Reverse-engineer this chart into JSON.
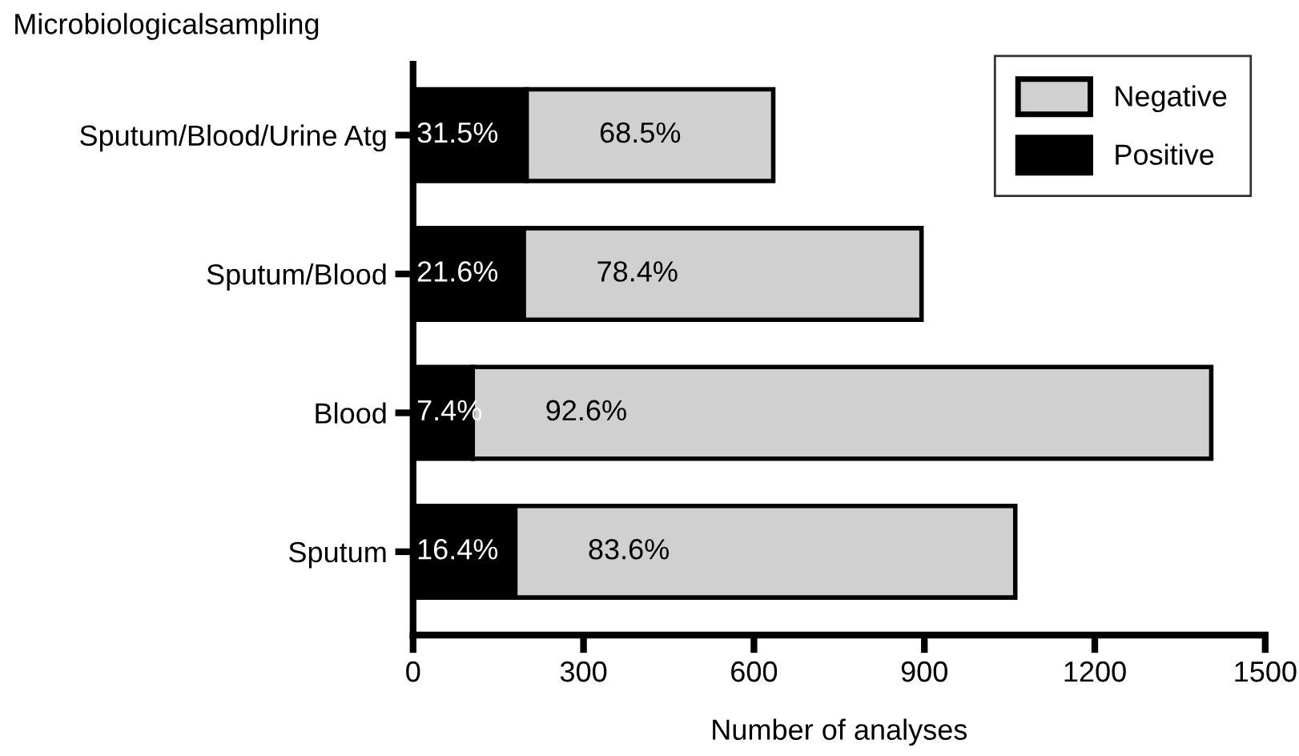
{
  "chart_data": {
    "type": "bar",
    "orientation": "horizontal",
    "stacked": true,
    "title": "Microbiologicalsampling",
    "xlabel": "Number of analyses",
    "categories": [
      "Sputum/Blood/Urine Atg",
      "Sputum/Blood",
      "Blood",
      "Sputum"
    ],
    "series": [
      {
        "name": "Positive",
        "color": "#000000",
        "values": [
          200,
          195,
          105,
          180
        ]
      },
      {
        "name": "Negative",
        "color": "#d0d0d0",
        "values": [
          434,
          700,
          1300,
          880
        ]
      }
    ],
    "annotations": [
      "31.5%",
      "68.5%",
      "21.6%",
      "78.4%",
      "7.4%",
      "92.6%",
      "16.4%",
      "83.6%"
    ],
    "xlim": [
      0,
      1500
    ],
    "xticks": [
      0,
      300,
      600,
      900,
      1200,
      1500
    ],
    "grid": false,
    "legend": "top right"
  }
}
